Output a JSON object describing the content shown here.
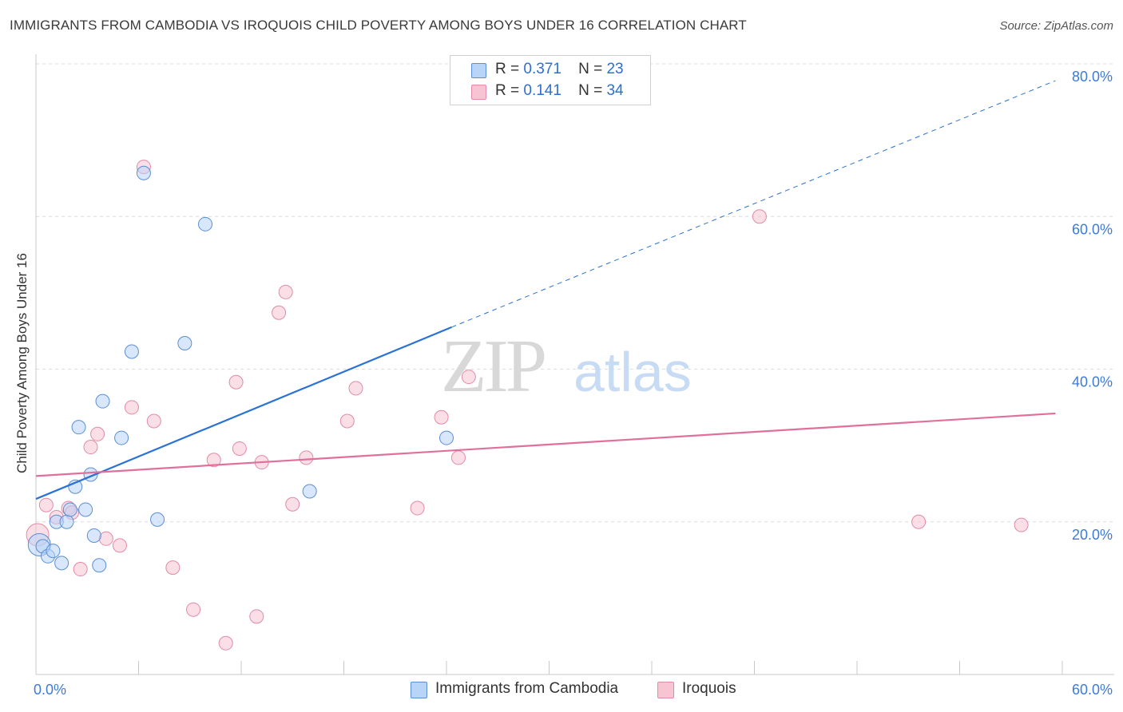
{
  "title": "IMMIGRANTS FROM CAMBODIA VS IROQUOIS CHILD POVERTY AMONG BOYS UNDER 16 CORRELATION CHART",
  "source": "Source: ZipAtlas.com",
  "watermark": {
    "zip": "ZIP",
    "atlas": "atlas"
  },
  "legend": {
    "cambodia": {
      "r_label": "R =",
      "r_value": "0.371",
      "n_label": "N =",
      "n_value": "23"
    },
    "iroquois": {
      "r_label": "R =",
      "r_value": "0.141",
      "n_label": "N =",
      "n_value": "34"
    }
  },
  "colors": {
    "cambodia_fill": "#b8d4f7",
    "cambodia_stroke": "#5b8fd4",
    "cambodia_line": "#2a72d4",
    "iroquois_fill": "#f8c4d4",
    "iroquois_stroke": "#e28aa8",
    "iroquois_line": "#e0709a",
    "tick_label": "#3d7bd8",
    "grid": "#dcdcdc"
  },
  "chart_data": {
    "type": "scatter",
    "title": "IMMIGRANTS FROM CAMBODIA VS IROQUOIS CHILD POVERTY AMONG BOYS UNDER 16 CORRELATION CHART",
    "xlabel": "",
    "ylabel": "Child Poverty Among Boys Under 16",
    "xlim": [
      0,
      60
    ],
    "ylim": [
      0,
      80
    ],
    "x_tick_labels": [
      "0.0%",
      "60.0%"
    ],
    "y_tick_labels": [
      "20.0%",
      "40.0%",
      "60.0%",
      "80.0%"
    ],
    "y_ticks": [
      20,
      40,
      60,
      80
    ],
    "series": [
      {
        "name": "Immigrants from Cambodia",
        "points": [
          [
            0.2,
            17.0
          ],
          [
            0.4,
            16.8
          ],
          [
            0.7,
            15.5
          ],
          [
            1.0,
            16.2
          ],
          [
            1.2,
            20.0
          ],
          [
            1.5,
            14.6
          ],
          [
            1.8,
            20.0
          ],
          [
            2.0,
            21.6
          ],
          [
            2.3,
            24.6
          ],
          [
            2.5,
            32.4
          ],
          [
            2.9,
            21.6
          ],
          [
            3.2,
            26.2
          ],
          [
            3.4,
            18.2
          ],
          [
            3.7,
            14.3
          ],
          [
            3.9,
            35.8
          ],
          [
            5.0,
            31.0
          ],
          [
            5.6,
            42.3
          ],
          [
            6.3,
            65.7
          ],
          [
            7.1,
            20.3
          ],
          [
            8.7,
            43.4
          ],
          [
            9.9,
            59.0
          ],
          [
            16.0,
            24.0
          ],
          [
            24.0,
            31.0
          ]
        ],
        "trend": {
          "x0": 0,
          "y0": 23.0,
          "x1": 24.3,
          "y1": 45.5,
          "dashed_to": {
            "x": 59.6,
            "y": 77.8
          }
        }
      },
      {
        "name": "Iroquois",
        "points": [
          [
            0.1,
            18.3
          ],
          [
            0.6,
            22.2
          ],
          [
            1.2,
            20.6
          ],
          [
            1.9,
            21.8
          ],
          [
            2.1,
            21.2
          ],
          [
            2.6,
            13.8
          ],
          [
            3.2,
            29.8
          ],
          [
            3.6,
            31.5
          ],
          [
            4.1,
            17.8
          ],
          [
            4.9,
            16.9
          ],
          [
            5.6,
            35.0
          ],
          [
            6.3,
            66.5
          ],
          [
            6.9,
            33.2
          ],
          [
            8.0,
            14.0
          ],
          [
            9.2,
            8.5
          ],
          [
            10.4,
            28.1
          ],
          [
            11.1,
            4.1
          ],
          [
            11.7,
            38.3
          ],
          [
            11.9,
            29.6
          ],
          [
            12.9,
            7.6
          ],
          [
            13.2,
            27.8
          ],
          [
            14.2,
            47.4
          ],
          [
            14.6,
            50.1
          ],
          [
            15.0,
            22.3
          ],
          [
            15.8,
            28.4
          ],
          [
            18.2,
            33.2
          ],
          [
            18.7,
            37.5
          ],
          [
            22.3,
            21.8
          ],
          [
            23.7,
            33.7
          ],
          [
            24.7,
            28.4
          ],
          [
            25.3,
            39.0
          ],
          [
            42.3,
            60.0
          ],
          [
            51.6,
            20.0
          ],
          [
            57.6,
            19.6
          ]
        ],
        "trend": {
          "x0": 0,
          "y0": 26.0,
          "x1": 59.6,
          "y1": 34.2
        }
      }
    ]
  }
}
